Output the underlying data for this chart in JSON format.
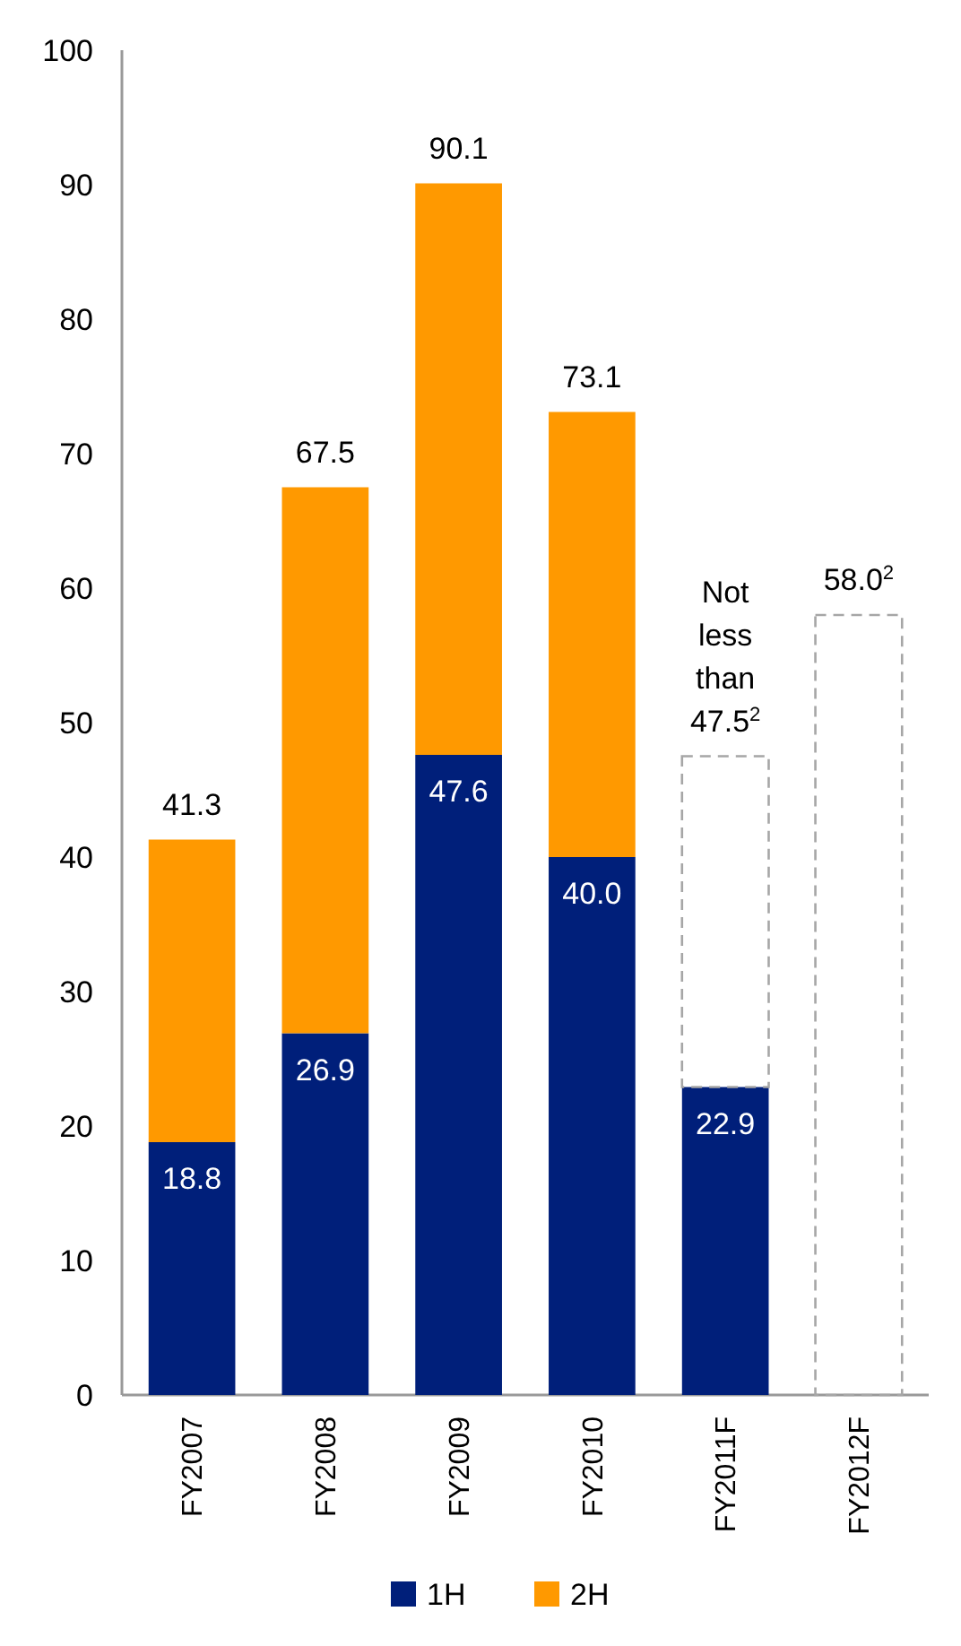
{
  "chart_data": {
    "type": "bar",
    "stacked": true,
    "categories": [
      "FY2007",
      "FY2008",
      "FY2009",
      "FY2010",
      "FY2011F",
      "FY2012F"
    ],
    "series": [
      {
        "name": "1H",
        "color": "#001f7a",
        "values": [
          18.8,
          26.9,
          47.6,
          40.0,
          22.9,
          null
        ],
        "value_labels": [
          "18.8",
          "26.9",
          "47.6",
          "40.0",
          "22.9",
          null
        ]
      },
      {
        "name": "2H",
        "color": "#ff9900",
        "values": [
          22.5,
          40.6,
          42.5,
          33.1,
          null,
          null
        ]
      },
      {
        "color": "#a6a6a6",
        "line_style": "dashed",
        "values": [
          null,
          null,
          null,
          null,
          24.6,
          58.0
        ]
      }
    ],
    "totals": [
      "41.3",
      "67.5",
      "90.1",
      "73.1",
      "Not less than 47.5$^{2}$",
      "58.0$^{2}$"
    ],
    "ylim": [
      0,
      100
    ],
    "yticks": [
      0,
      10,
      20,
      30,
      40,
      50,
      60,
      70,
      80,
      90,
      100
    ],
    "grid": false,
    "legend": "bottom"
  }
}
